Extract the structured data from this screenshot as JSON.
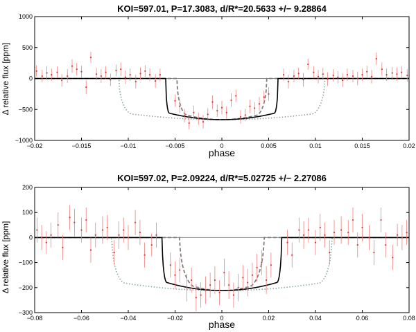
{
  "chart_data": [
    {
      "type": "scatter",
      "title": "KOI=597.01, P=17.3083, d/R*=20.5633 +/− 9.28864",
      "xlabel": "phase",
      "ylabel": "Δ relative flux [ppm]",
      "xlim": [
        -0.02,
        0.02
      ],
      "ylim": [
        -1000,
        1000
      ],
      "xticks": [
        -0.02,
        -0.015,
        -0.01,
        -0.005,
        0,
        0.005,
        0.01,
        0.015,
        0.02
      ],
      "xtick_labels": [
        "−0.02",
        "−0.015",
        "−0.01",
        "−0.005",
        "0",
        "0.005",
        "0.01",
        "0.015",
        "0.02"
      ],
      "yticks": [
        -1000,
        -500,
        0,
        500,
        1000
      ],
      "ytick_labels": [
        "−1000",
        "−500",
        "0",
        "500",
        "1000"
      ],
      "model_depth": -665,
      "models": {
        "solid": {
          "half_width": 0.006,
          "ingress": 0.0004,
          "color": "#000000"
        },
        "dashed": {
          "half_width": 0.0048,
          "ingress": 0.0012,
          "color": "#7f7f7f"
        },
        "dotted": {
          "half_width": 0.011,
          "ingress": 0.0015,
          "color": "#8aa6a0"
        }
      },
      "points": [
        {
          "x": -0.0198,
          "y": 120,
          "e": 90
        },
        {
          "x": -0.0192,
          "y": 40,
          "e": 100
        },
        {
          "x": -0.0187,
          "y": 90,
          "e": 110
        },
        {
          "x": -0.0182,
          "y": 60,
          "e": 100
        },
        {
          "x": -0.0176,
          "y": 100,
          "e": 95
        },
        {
          "x": -0.0171,
          "y": -30,
          "e": 100
        },
        {
          "x": -0.0165,
          "y": 40,
          "e": 110
        },
        {
          "x": -0.016,
          "y": 200,
          "e": 110
        },
        {
          "x": -0.0155,
          "y": 150,
          "e": 100
        },
        {
          "x": -0.015,
          "y": 110,
          "e": 95
        },
        {
          "x": -0.0145,
          "y": -140,
          "e": 110
        },
        {
          "x": -0.014,
          "y": 340,
          "e": 90
        },
        {
          "x": -0.0134,
          "y": 70,
          "e": 100
        },
        {
          "x": -0.0129,
          "y": 40,
          "e": 110
        },
        {
          "x": -0.0124,
          "y": 100,
          "e": 100
        },
        {
          "x": -0.0119,
          "y": -20,
          "e": 100
        },
        {
          "x": -0.0113,
          "y": 130,
          "e": 95
        },
        {
          "x": -0.0108,
          "y": 150,
          "e": 110
        },
        {
          "x": -0.0103,
          "y": 20,
          "e": 110
        },
        {
          "x": -0.0098,
          "y": 60,
          "e": 100
        },
        {
          "x": -0.0092,
          "y": -50,
          "e": 110
        },
        {
          "x": -0.0087,
          "y": 80,
          "e": 100
        },
        {
          "x": -0.0082,
          "y": 120,
          "e": 95
        },
        {
          "x": -0.0077,
          "y": 60,
          "e": 100
        },
        {
          "x": -0.0071,
          "y": -40,
          "e": 110
        },
        {
          "x": -0.0066,
          "y": 60,
          "e": 100
        },
        {
          "x": -0.005,
          "y": -360,
          "e": 100
        },
        {
          "x": -0.0045,
          "y": -450,
          "e": 110
        },
        {
          "x": -0.004,
          "y": -600,
          "e": 110
        },
        {
          "x": -0.0035,
          "y": -720,
          "e": 100
        },
        {
          "x": -0.003,
          "y": -550,
          "e": 110
        },
        {
          "x": -0.0025,
          "y": -650,
          "e": 100
        },
        {
          "x": -0.002,
          "y": -700,
          "e": 110
        },
        {
          "x": -0.0015,
          "y": -580,
          "e": 100
        },
        {
          "x": -0.001,
          "y": -380,
          "e": 110
        },
        {
          "x": -0.0005,
          "y": -520,
          "e": 100
        },
        {
          "x": 0.0,
          "y": -470,
          "e": 110
        },
        {
          "x": 0.0005,
          "y": -550,
          "e": 100
        },
        {
          "x": 0.001,
          "y": -350,
          "e": 110
        },
        {
          "x": 0.0015,
          "y": -280,
          "e": 100
        },
        {
          "x": 0.002,
          "y": -620,
          "e": 110
        },
        {
          "x": 0.0025,
          "y": -590,
          "e": 100
        },
        {
          "x": 0.003,
          "y": -450,
          "e": 110
        },
        {
          "x": 0.0035,
          "y": -480,
          "e": 100
        },
        {
          "x": 0.004,
          "y": -410,
          "e": 110
        },
        {
          "x": 0.0045,
          "y": -300,
          "e": 100
        },
        {
          "x": 0.005,
          "y": -250,
          "e": 110
        },
        {
          "x": 0.0066,
          "y": 60,
          "e": 100
        },
        {
          "x": 0.0071,
          "y": -50,
          "e": 110
        },
        {
          "x": 0.0077,
          "y": 40,
          "e": 100
        },
        {
          "x": 0.0082,
          "y": 80,
          "e": 95
        },
        {
          "x": 0.0087,
          "y": -20,
          "e": 110
        },
        {
          "x": 0.0092,
          "y": 230,
          "e": 90
        },
        {
          "x": 0.0098,
          "y": 100,
          "e": 100
        },
        {
          "x": 0.0103,
          "y": 30,
          "e": 110
        },
        {
          "x": 0.0108,
          "y": 70,
          "e": 100
        },
        {
          "x": 0.0113,
          "y": -10,
          "e": 110
        },
        {
          "x": 0.0119,
          "y": 50,
          "e": 100
        },
        {
          "x": 0.0124,
          "y": 20,
          "e": 100
        },
        {
          "x": 0.0129,
          "y": -30,
          "e": 110
        },
        {
          "x": 0.0134,
          "y": 60,
          "e": 100
        },
        {
          "x": 0.014,
          "y": 40,
          "e": 100
        },
        {
          "x": 0.0145,
          "y": 0,
          "e": 110
        },
        {
          "x": 0.015,
          "y": 60,
          "e": 100
        },
        {
          "x": 0.0155,
          "y": 110,
          "e": 95
        },
        {
          "x": 0.016,
          "y": 30,
          "e": 110
        },
        {
          "x": 0.0165,
          "y": 320,
          "e": 100
        },
        {
          "x": 0.0171,
          "y": 150,
          "e": 110
        },
        {
          "x": 0.0176,
          "y": 60,
          "e": 100
        },
        {
          "x": 0.0182,
          "y": 90,
          "e": 95
        },
        {
          "x": 0.0187,
          "y": 70,
          "e": 110
        },
        {
          "x": 0.0192,
          "y": 100,
          "e": 100
        },
        {
          "x": 0.0198,
          "y": 50,
          "e": 100
        }
      ]
    },
    {
      "type": "scatter",
      "title": "KOI=597.02, P=2.09224, d/R*=5.02725 +/− 2.27086",
      "xlabel": "phase",
      "ylabel": "Δ relative flux [ppm]",
      "xlim": [
        -0.08,
        0.08
      ],
      "ylim": [
        -300,
        200
      ],
      "xticks": [
        -0.08,
        -0.06,
        -0.04,
        -0.02,
        0,
        0.02,
        0.04,
        0.06,
        0.08
      ],
      "xtick_labels": [
        "−0.08",
        "−0.06",
        "−0.04",
        "−0.02",
        "0",
        "0.02",
        "0.04",
        "0.06",
        "0.08"
      ],
      "yticks": [
        -300,
        -200,
        -100,
        0,
        100,
        200
      ],
      "ytick_labels": [
        "−300",
        "−200",
        "−100",
        "0",
        "100",
        "200"
      ],
      "model_depth": -212,
      "models": {
        "solid": {
          "half_width": 0.0255,
          "ingress": 0.002,
          "color": "#000000"
        },
        "dashed": {
          "half_width": 0.018,
          "ingress": 0.007,
          "color": "#7f7f7f"
        },
        "dotted": {
          "half_width": 0.047,
          "ingress": 0.006,
          "color": "#8aa6a0"
        }
      },
      "points": [
        {
          "x": -0.079,
          "y": 30,
          "e": 50
        },
        {
          "x": -0.077,
          "y": 0,
          "e": 50
        },
        {
          "x": -0.075,
          "y": -20,
          "e": 45
        },
        {
          "x": -0.073,
          "y": 10,
          "e": 50
        },
        {
          "x": -0.07,
          "y": 50,
          "e": 50
        },
        {
          "x": -0.068,
          "y": -40,
          "e": 50
        },
        {
          "x": -0.065,
          "y": 80,
          "e": 50
        },
        {
          "x": -0.063,
          "y": 60,
          "e": 55
        },
        {
          "x": -0.06,
          "y": 30,
          "e": 50
        },
        {
          "x": -0.058,
          "y": 70,
          "e": 50
        },
        {
          "x": -0.056,
          "y": -50,
          "e": 50
        },
        {
          "x": -0.054,
          "y": 10,
          "e": 50
        },
        {
          "x": -0.051,
          "y": 30,
          "e": 55
        },
        {
          "x": -0.049,
          "y": 40,
          "e": 50
        },
        {
          "x": -0.046,
          "y": -60,
          "e": 50
        },
        {
          "x": -0.044,
          "y": 10,
          "e": 55
        },
        {
          "x": -0.042,
          "y": 30,
          "e": 50
        },
        {
          "x": -0.04,
          "y": 0,
          "e": 50
        },
        {
          "x": -0.037,
          "y": 60,
          "e": 50
        },
        {
          "x": -0.035,
          "y": 20,
          "e": 50
        },
        {
          "x": -0.033,
          "y": -70,
          "e": 50
        },
        {
          "x": -0.03,
          "y": -30,
          "e": 45
        },
        {
          "x": -0.028,
          "y": 10,
          "e": 50
        },
        {
          "x": -0.022,
          "y": -110,
          "e": 50
        },
        {
          "x": -0.02,
          "y": -150,
          "e": 55
        },
        {
          "x": -0.018,
          "y": -130,
          "e": 50
        },
        {
          "x": -0.015,
          "y": -200,
          "e": 55
        },
        {
          "x": -0.013,
          "y": -170,
          "e": 50
        },
        {
          "x": -0.011,
          "y": -240,
          "e": 55
        },
        {
          "x": -0.009,
          "y": -230,
          "e": 50
        },
        {
          "x": -0.007,
          "y": -210,
          "e": 55
        },
        {
          "x": -0.005,
          "y": -190,
          "e": 50
        },
        {
          "x": -0.003,
          "y": -170,
          "e": 55
        },
        {
          "x": -0.001,
          "y": -220,
          "e": 50
        },
        {
          "x": 0.001,
          "y": -140,
          "e": 55
        },
        {
          "x": 0.003,
          "y": -190,
          "e": 55
        },
        {
          "x": 0.005,
          "y": -230,
          "e": 50
        },
        {
          "x": 0.007,
          "y": -200,
          "e": 55
        },
        {
          "x": 0.009,
          "y": -160,
          "e": 50
        },
        {
          "x": 0.011,
          "y": -180,
          "e": 55
        },
        {
          "x": 0.013,
          "y": -150,
          "e": 50
        },
        {
          "x": 0.015,
          "y": -120,
          "e": 55
        },
        {
          "x": 0.017,
          "y": -100,
          "e": 50
        },
        {
          "x": 0.019,
          "y": -170,
          "e": 55
        },
        {
          "x": 0.021,
          "y": -110,
          "e": 50
        },
        {
          "x": 0.028,
          "y": -20,
          "e": 50
        },
        {
          "x": 0.03,
          "y": -70,
          "e": 50
        },
        {
          "x": 0.033,
          "y": 30,
          "e": 50
        },
        {
          "x": 0.035,
          "y": 10,
          "e": 55
        },
        {
          "x": 0.037,
          "y": 30,
          "e": 50
        },
        {
          "x": 0.04,
          "y": -20,
          "e": 50
        },
        {
          "x": 0.042,
          "y": 40,
          "e": 55
        },
        {
          "x": 0.044,
          "y": 10,
          "e": 50
        },
        {
          "x": 0.046,
          "y": -60,
          "e": 50
        },
        {
          "x": 0.048,
          "y": 20,
          "e": 50
        },
        {
          "x": 0.051,
          "y": 30,
          "e": 55
        },
        {
          "x": 0.054,
          "y": 20,
          "e": 50
        },
        {
          "x": 0.056,
          "y": 70,
          "e": 50
        },
        {
          "x": 0.058,
          "y": -30,
          "e": 50
        },
        {
          "x": 0.06,
          "y": 40,
          "e": 55
        },
        {
          "x": 0.063,
          "y": 0,
          "e": 50
        },
        {
          "x": 0.065,
          "y": -60,
          "e": 50
        },
        {
          "x": 0.068,
          "y": 70,
          "e": 50
        },
        {
          "x": 0.07,
          "y": -30,
          "e": 50
        },
        {
          "x": 0.073,
          "y": -80,
          "e": 50
        },
        {
          "x": 0.075,
          "y": 10,
          "e": 45
        },
        {
          "x": 0.077,
          "y": 0,
          "e": 50
        },
        {
          "x": 0.079,
          "y": 20,
          "e": 50
        }
      ]
    }
  ]
}
